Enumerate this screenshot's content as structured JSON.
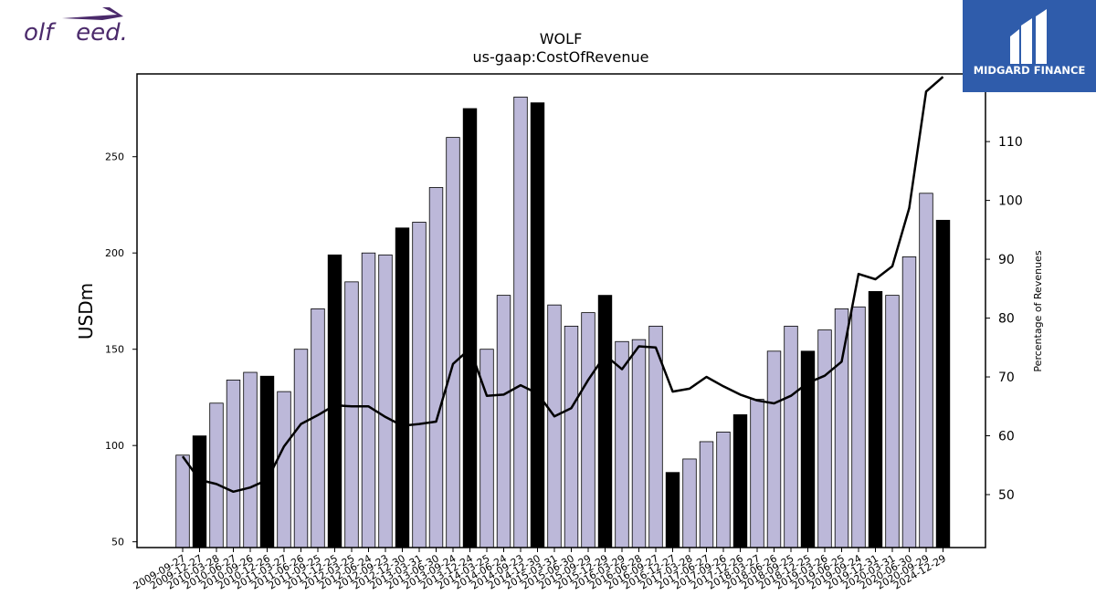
{
  "brand_left": {
    "text": "olf   eed.",
    "color": "#4b2a6b"
  },
  "brand_right": {
    "text": "MIDGARD FINANCE",
    "bg_color": "#2f5cab"
  },
  "chart_data": {
    "type": "bar",
    "title": "WOLF",
    "subtitle": "us-gaap:CostOfRevenue",
    "ylabel": "USDm",
    "y2label": "Percentage of Revenues",
    "ylim": [
      47,
      293
    ],
    "y2lim": [
      41,
      121.5
    ],
    "yticks": [
      50,
      100,
      150,
      200,
      250
    ],
    "y2ticks": [
      50,
      60,
      70,
      80,
      90,
      100,
      110
    ],
    "colors": {
      "bar": "#bcb8d9",
      "bar_highlight": "#000000",
      "line": "#000000"
    },
    "categories": [
      "2009-09-27",
      "2009-12-27",
      "2010-03-28",
      "2010-06-27",
      "2010-09-26",
      "2010-12-26",
      "2011-03-27",
      "2011-06-26",
      "2011-09-25",
      "2011-12-25",
      "2012-03-25",
      "2012-06-24",
      "2012-09-23",
      "2012-12-30",
      "2013-03-31",
      "2013-06-30",
      "2013-09-24",
      "2013-12-24",
      "2014-03-25",
      "2014-06-24",
      "2014-09-23",
      "2014-12-30",
      "2015-03-31",
      "2015-06-30",
      "2015-09-29",
      "2015-12-29",
      "2016-03-29",
      "2016-06-28",
      "2016-09-27",
      "2016-12-27",
      "2017-03-28",
      "2017-06-27",
      "2017-09-26",
      "2017-12-26",
      "2018-03-27",
      "2018-06-26",
      "2018-09-25",
      "2018-12-25",
      "2019-03-26",
      "2019-06-25",
      "2019-09-24",
      "2019-12-31",
      "2020-03-31",
      "2020-06-30",
      "2020-09-29",
      "2024-12-29"
    ],
    "tick_labels": [
      "2009-09-27",
      "2009-12-27",
      "2010-03-28",
      "2010-06-27",
      "2010-09-26",
      "2010-12-26",
      "2011-03-27",
      "2011-06-26",
      "2011-09-25",
      "2011-12-25",
      "2012-03-25",
      "2012-06-24",
      "2012-09-23",
      "2012-12-30",
      "2013-03-31",
      "2013-06-30",
      "2013-09-24",
      "2013-12-24",
      "2014-03-25",
      "2014-06-24",
      "2014-09-23",
      "2014-12-30",
      "2015-03-31",
      "2015-06-30",
      "2015-09-29",
      "2015-12-29",
      "2016-03-29",
      "2016-06-28",
      "2016-09-27",
      "2016-12-27",
      "2017-03-28",
      "2017-06-27",
      "2017-09-26",
      "2017-12-26",
      "2018-03-27",
      "2018-06-26",
      "2018-09-25",
      "2018-12-25",
      "2019-03-26",
      "2019-06-25",
      "2019-09-24",
      "2019-12-31",
      "2020-03-31",
      "2020-06-30",
      "2020-09-29",
      "2024-12-29"
    ],
    "highlight_indices": [
      1,
      5,
      9,
      13,
      17,
      21,
      25,
      29,
      33,
      37,
      41,
      45
    ],
    "series": [
      {
        "values": [
          95,
          105,
          122,
          134,
          138,
          136,
          128,
          150,
          171,
          199,
          185,
          200,
          199,
          213,
          216,
          234,
          260,
          275,
          150,
          178,
          281,
          278,
          173,
          162,
          169,
          178,
          154,
          155,
          162,
          86,
          93,
          102,
          107,
          116,
          124,
          149,
          162,
          149,
          160,
          171,
          172,
          180,
          178,
          198,
          231,
          217
        ]
      },
      {
        "values": [
          56.5,
          52.5,
          51.8,
          50.5,
          51.2,
          52.5,
          58.2,
          62.0,
          63.5,
          65.2,
          65.0,
          65.0,
          63.2,
          61.7,
          62.0,
          62.4,
          72.2,
          74.8,
          66.8,
          67.0,
          68.6,
          67.2,
          63.3,
          64.7,
          69.5,
          73.7,
          71.3,
          75.2,
          75.0,
          67.5,
          68.0,
          70.0,
          68.4,
          67.0,
          66.0,
          65.5,
          66.8,
          69.0,
          70.2,
          72.6,
          87.5,
          86.6,
          88.8,
          98.7,
          118.5,
          121
        ]
      }
    ]
  }
}
